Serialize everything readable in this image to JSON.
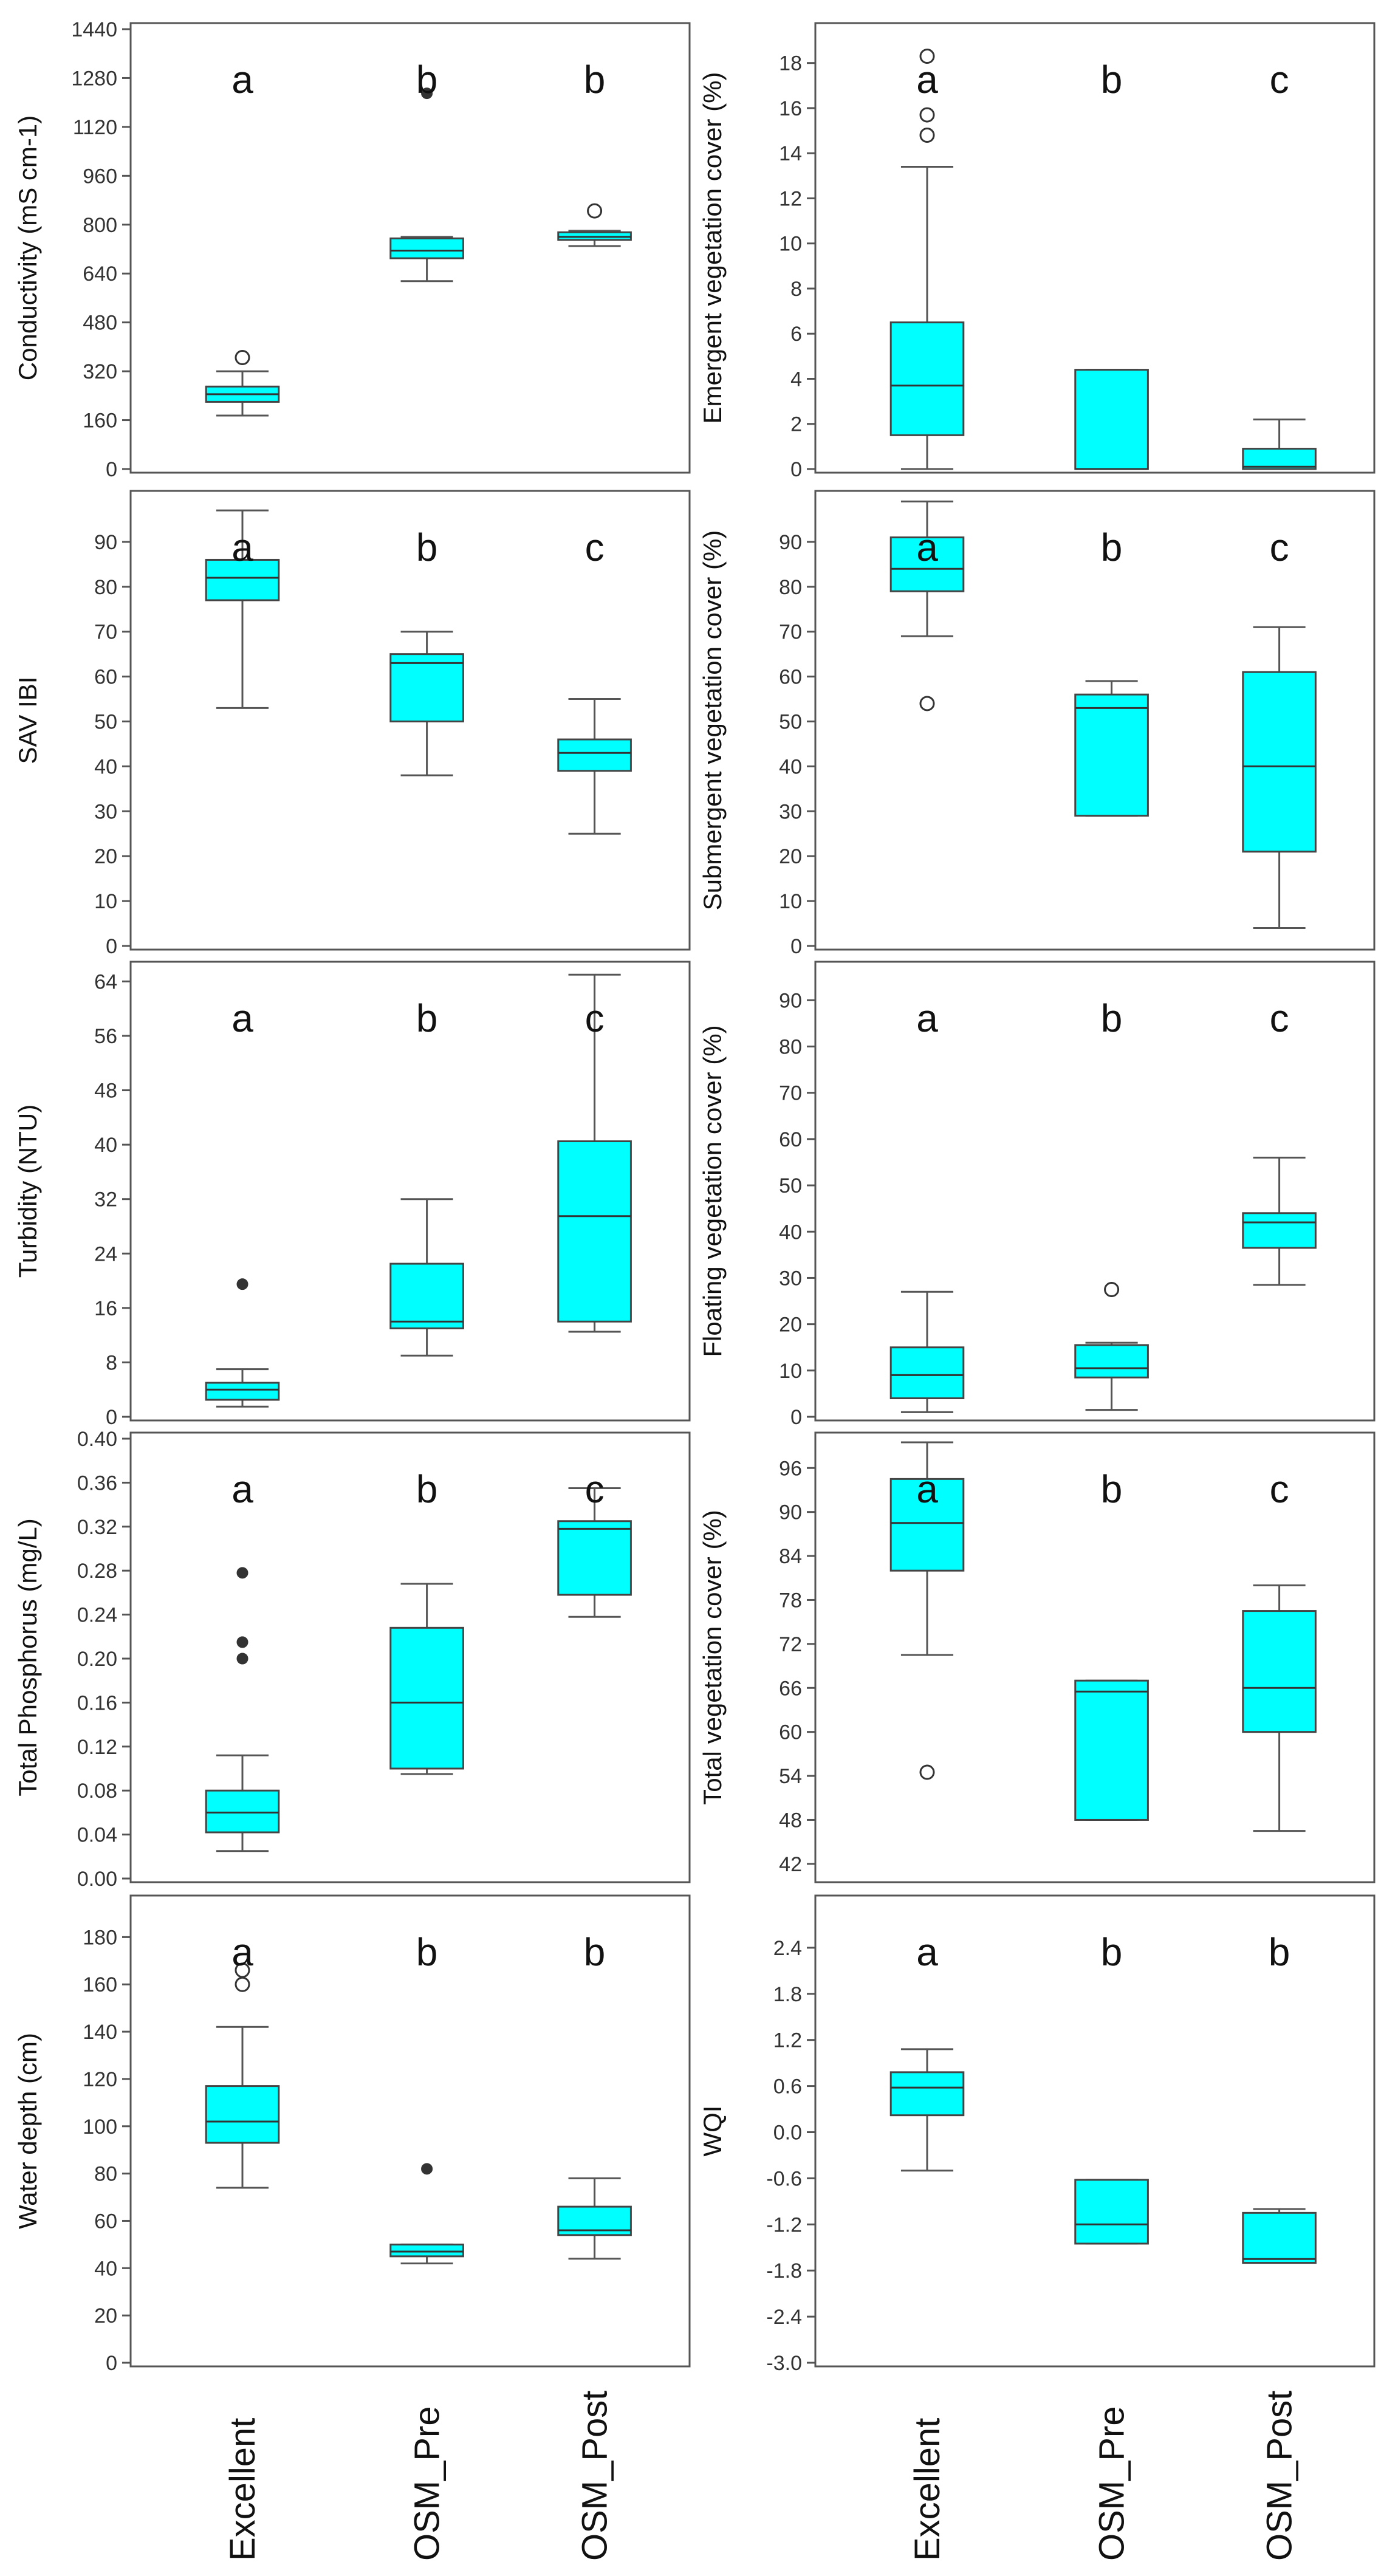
{
  "figure": {
    "x_categories": [
      "Excellent",
      "OSM_Pre",
      "OSM_Post"
    ],
    "box_color": "#00ffff",
    "outlier_color": "#333333"
  },
  "chart_data": [
    {
      "type": "box",
      "panel": "left-1",
      "ylabel": "Conductivity (mS cm-1)",
      "ylim": [
        0,
        1440
      ],
      "ticks": [
        0,
        160,
        320,
        480,
        640,
        800,
        960,
        1120,
        1280,
        1440
      ],
      "tick_labels": [
        "0",
        "160",
        "320",
        "480",
        "640",
        "800",
        "960",
        "1120",
        "1280",
        "1440"
      ],
      "categories": [
        "Excellent",
        "OSM_Pre",
        "OSM_Post"
      ],
      "group_letters": [
        "a",
        "b",
        "b"
      ],
      "boxes": [
        {
          "whisker_low": 175,
          "q1": 220,
          "median": 245,
          "q3": 270,
          "whisker_high": 320
        },
        {
          "whisker_low": 615,
          "q1": 690,
          "median": 715,
          "q3": 755,
          "whisker_high": 760
        },
        {
          "whisker_low": 730,
          "q1": 750,
          "median": 760,
          "q3": 775,
          "whisker_high": 780
        }
      ],
      "outliers": [
        {
          "group": 0,
          "value": 365,
          "style": "open"
        },
        {
          "group": 1,
          "value": 1230,
          "style": "filled"
        },
        {
          "group": 2,
          "value": 845,
          "style": "open"
        }
      ]
    },
    {
      "type": "box",
      "panel": "right-1",
      "ylabel": "Emergent vegetation cover (%)",
      "ylim": [
        0,
        19.5
      ],
      "ticks": [
        0,
        2,
        4,
        6,
        8,
        10,
        12,
        14,
        16,
        18
      ],
      "tick_labels": [
        "0",
        "2",
        "4",
        "6",
        "8",
        "10",
        "12",
        "14",
        "16",
        "18"
      ],
      "categories": [
        "Excellent",
        "OSM_Pre",
        "OSM_Post"
      ],
      "group_letters": [
        "a",
        "b",
        "c"
      ],
      "boxes": [
        {
          "whisker_low": 0,
          "q1": 1.5,
          "median": 3.7,
          "q3": 6.5,
          "whisker_high": 13.4
        },
        {
          "whisker_low": 0,
          "q1": 0,
          "median": 0,
          "q3": 4.4,
          "whisker_high": 4.4
        },
        {
          "whisker_low": 0,
          "q1": 0,
          "median": 0.1,
          "q3": 0.9,
          "whisker_high": 2.2
        }
      ],
      "outliers": [
        {
          "group": 0,
          "value": 14.8,
          "style": "open"
        },
        {
          "group": 0,
          "value": 15.7,
          "style": "open"
        },
        {
          "group": 0,
          "value": 18.3,
          "style": "open"
        }
      ]
    },
    {
      "type": "box",
      "panel": "left-2",
      "ylabel": "SAV IBI",
      "ylim": [
        0,
        100
      ],
      "ticks": [
        0,
        10,
        20,
        30,
        40,
        50,
        60,
        70,
        80,
        90
      ],
      "tick_labels": [
        "0",
        "10",
        "20",
        "30",
        "40",
        "50",
        "60",
        "70",
        "80",
        "90"
      ],
      "categories": [
        "Excellent",
        "OSM_Pre",
        "OSM_Post"
      ],
      "group_letters": [
        "a",
        "b",
        "c"
      ],
      "boxes": [
        {
          "whisker_low": 53,
          "q1": 77,
          "median": 82,
          "q3": 86,
          "whisker_high": 97
        },
        {
          "whisker_low": 38,
          "q1": 50,
          "median": 63,
          "q3": 65,
          "whisker_high": 70
        },
        {
          "whisker_low": 25,
          "q1": 39,
          "median": 43,
          "q3": 46,
          "whisker_high": 55
        }
      ],
      "outliers": []
    },
    {
      "type": "box",
      "panel": "right-2",
      "ylabel": "Submergent vegetation cover (%)",
      "ylim": [
        0,
        100
      ],
      "ticks": [
        0,
        10,
        20,
        30,
        40,
        50,
        60,
        70,
        80,
        90
      ],
      "tick_labels": [
        "0",
        "10",
        "20",
        "30",
        "40",
        "50",
        "60",
        "70",
        "80",
        "90"
      ],
      "categories": [
        "Excellent",
        "OSM_Pre",
        "OSM_Post"
      ],
      "group_letters": [
        "a",
        "b",
        "c"
      ],
      "boxes": [
        {
          "whisker_low": 69,
          "q1": 79,
          "median": 84,
          "q3": 91,
          "whisker_high": 99
        },
        {
          "whisker_low": 29,
          "q1": 29,
          "median": 53,
          "q3": 56,
          "whisker_high": 59
        },
        {
          "whisker_low": 4,
          "q1": 21,
          "median": 40,
          "q3": 61,
          "whisker_high": 71
        }
      ],
      "outliers": [
        {
          "group": 0,
          "value": 54,
          "style": "open"
        }
      ]
    },
    {
      "type": "box",
      "panel": "left-3",
      "ylabel": "Turbidity (NTU)",
      "ylim": [
        0,
        66
      ],
      "ticks": [
        0,
        8,
        16,
        24,
        32,
        40,
        48,
        56,
        64
      ],
      "tick_labels": [
        "0",
        "8",
        "16",
        "24",
        "32",
        "40",
        "48",
        "56",
        "64"
      ],
      "categories": [
        "Excellent",
        "OSM_Pre",
        "OSM_Post"
      ],
      "group_letters": [
        "a",
        "b",
        "c"
      ],
      "boxes": [
        {
          "whisker_low": 1.5,
          "q1": 2.5,
          "median": 4,
          "q3": 5,
          "whisker_high": 7
        },
        {
          "whisker_low": 9,
          "q1": 13,
          "median": 14,
          "q3": 22.5,
          "whisker_high": 32
        },
        {
          "whisker_low": 12.5,
          "q1": 14,
          "median": 29.5,
          "q3": 40.5,
          "whisker_high": 65
        }
      ],
      "outliers": [
        {
          "group": 0,
          "value": 19.5,
          "style": "filled"
        }
      ]
    },
    {
      "type": "box",
      "panel": "right-3",
      "ylabel": "Floating vegetation cover (%)",
      "ylim": [
        0,
        97
      ],
      "ticks": [
        0,
        10,
        20,
        30,
        40,
        50,
        60,
        70,
        80,
        90
      ],
      "tick_labels": [
        "0",
        "10",
        "20",
        "30",
        "40",
        "50",
        "60",
        "70",
        "80",
        "90"
      ],
      "categories": [
        "Excellent",
        "OSM_Pre",
        "OSM_Post"
      ],
      "group_letters": [
        "a",
        "b",
        "c"
      ],
      "boxes": [
        {
          "whisker_low": 1,
          "q1": 4,
          "median": 9,
          "q3": 15,
          "whisker_high": 27
        },
        {
          "whisker_low": 1.5,
          "q1": 8.5,
          "median": 10.5,
          "q3": 15.5,
          "whisker_high": 16
        },
        {
          "whisker_low": 28.5,
          "q1": 36.5,
          "median": 42,
          "q3": 44,
          "whisker_high": 56
        }
      ],
      "outliers": [
        {
          "group": 1,
          "value": 27.5,
          "style": "open"
        }
      ]
    },
    {
      "type": "box",
      "panel": "left-4",
      "ylabel": "Total Phosphorus (mg/L)",
      "ylim": [
        0,
        0.4
      ],
      "ticks": [
        0,
        0.04,
        0.08,
        0.12,
        0.16,
        0.2,
        0.24,
        0.28,
        0.32,
        0.36,
        0.4
      ],
      "tick_labels": [
        "0.00",
        "0.04",
        "0.08",
        "0.12",
        "0.16",
        "0.20",
        "0.24",
        "0.28",
        "0.32",
        "0.36",
        "0.40"
      ],
      "categories": [
        "Excellent",
        "OSM_Pre",
        "OSM_Post"
      ],
      "group_letters": [
        "a",
        "b",
        "c"
      ],
      "boxes": [
        {
          "whisker_low": 0.025,
          "q1": 0.042,
          "median": 0.06,
          "q3": 0.08,
          "whisker_high": 0.112
        },
        {
          "whisker_low": 0.095,
          "q1": 0.1,
          "median": 0.16,
          "q3": 0.228,
          "whisker_high": 0.268
        },
        {
          "whisker_low": 0.238,
          "q1": 0.258,
          "median": 0.318,
          "q3": 0.325,
          "whisker_high": 0.355
        }
      ],
      "outliers": [
        {
          "group": 0,
          "value": 0.2,
          "style": "filled"
        },
        {
          "group": 0,
          "value": 0.215,
          "style": "filled"
        },
        {
          "group": 0,
          "value": 0.278,
          "style": "filled"
        }
      ]
    },
    {
      "type": "box",
      "panel": "right-4",
      "ylabel": "Total vegetation cover (%)",
      "ylim": [
        40,
        100
      ],
      "ticks": [
        42,
        48,
        54,
        60,
        66,
        72,
        78,
        84,
        90,
        96
      ],
      "tick_labels": [
        "42",
        "48",
        "54",
        "60",
        "66",
        "72",
        "78",
        "84",
        "90",
        "96"
      ],
      "categories": [
        "Excellent",
        "OSM_Pre",
        "OSM_Post"
      ],
      "group_letters": [
        "a",
        "b",
        "c"
      ],
      "boxes": [
        {
          "whisker_low": 70.5,
          "q1": 82,
          "median": 88.5,
          "q3": 94.5,
          "whisker_high": 99.5
        },
        {
          "whisker_low": 48,
          "q1": 48,
          "median": 65.5,
          "q3": 67,
          "whisker_high": 67
        },
        {
          "whisker_low": 46.5,
          "q1": 60,
          "median": 66,
          "q3": 76.5,
          "whisker_high": 80
        }
      ],
      "outliers": [
        {
          "group": 0,
          "value": 54.5,
          "style": "open"
        }
      ]
    },
    {
      "type": "box",
      "panel": "left-5",
      "ylabel": "Water depth (cm)",
      "ylim": [
        0,
        195
      ],
      "ticks": [
        0,
        20,
        40,
        60,
        80,
        100,
        120,
        140,
        160,
        180
      ],
      "tick_labels": [
        "0",
        "20",
        "40",
        "60",
        "80",
        "100",
        "120",
        "140",
        "160",
        "180"
      ],
      "categories": [
        "Excellent",
        "OSM_Pre",
        "OSM_Post"
      ],
      "group_letters": [
        "a",
        "b",
        "b"
      ],
      "boxes": [
        {
          "whisker_low": 74,
          "q1": 93,
          "median": 102,
          "q3": 117,
          "whisker_high": 142
        },
        {
          "whisker_low": 42,
          "q1": 45,
          "median": 47,
          "q3": 50,
          "whisker_high": 50
        },
        {
          "whisker_low": 44,
          "q1": 54,
          "median": 56,
          "q3": 66,
          "whisker_high": 78
        }
      ],
      "outliers": [
        {
          "group": 0,
          "value": 160,
          "style": "open"
        },
        {
          "group": 0,
          "value": 166,
          "style": "open"
        },
        {
          "group": 1,
          "value": 82,
          "style": "filled"
        }
      ]
    },
    {
      "type": "box",
      "panel": "right-5",
      "ylabel": "WQI",
      "ylim": [
        -3.0,
        3.0
      ],
      "ticks": [
        -3.0,
        -2.4,
        -1.8,
        -1.2,
        -0.6,
        0.0,
        0.6,
        1.2,
        1.8,
        2.4
      ],
      "tick_labels": [
        "-3.0",
        "-2.4",
        "-1.8",
        "-1.2",
        "-0.6",
        "0.0",
        "0.6",
        "1.2",
        "1.8",
        "2.4"
      ],
      "categories": [
        "Excellent",
        "OSM_Pre",
        "OSM_Post"
      ],
      "group_letters": [
        "a",
        "b",
        "b"
      ],
      "boxes": [
        {
          "whisker_low": -0.5,
          "q1": 0.22,
          "median": 0.58,
          "q3": 0.78,
          "whisker_high": 1.08
        },
        {
          "whisker_low": -1.45,
          "q1": -1.45,
          "median": -1.2,
          "q3": -0.62,
          "whisker_high": -0.62
        },
        {
          "whisker_low": -1.7,
          "q1": -1.7,
          "median": -1.65,
          "q3": -1.05,
          "whisker_high": -1.0
        }
      ],
      "outliers": []
    }
  ]
}
